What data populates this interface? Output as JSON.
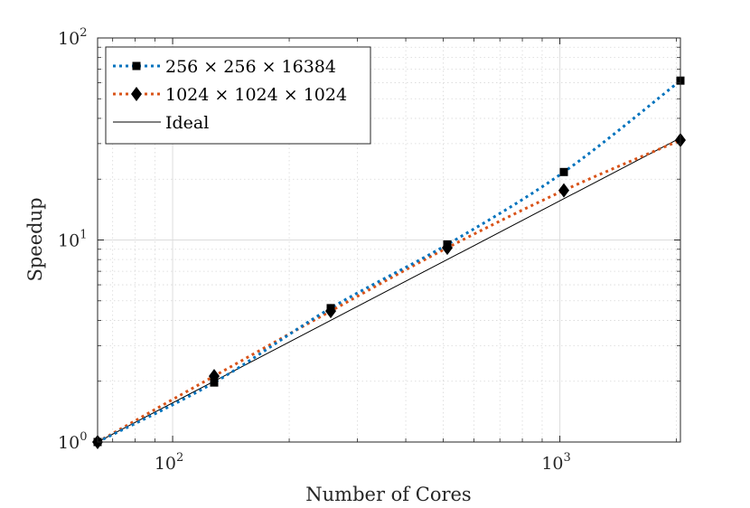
{
  "chart_data": {
    "type": "line",
    "xscale": "log",
    "yscale": "log",
    "xlim": [
      64,
      2048
    ],
    "ylim": [
      1,
      100
    ],
    "xlabel": "Number of Cores",
    "ylabel": "Speedup",
    "grid": true,
    "minor_grid": true,
    "legend_position": "top-left",
    "x_ticks": [
      {
        "value": 100,
        "base": "10",
        "exp": "2"
      },
      {
        "value": 1000,
        "base": "10",
        "exp": "3"
      }
    ],
    "y_ticks": [
      {
        "value": 1,
        "base": "10",
        "exp": "0"
      },
      {
        "value": 10,
        "base": "10",
        "exp": "1"
      },
      {
        "value": 100,
        "base": "10",
        "exp": "2"
      }
    ],
    "series": [
      {
        "name": "256 × 256 × 16384",
        "color": "#0072BD",
        "line_style": "dotted",
        "marker": "square",
        "x": [
          64,
          128,
          256,
          512,
          1024,
          2048
        ],
        "y": [
          1.0,
          1.97,
          4.6,
          9.5,
          21.7,
          61.5
        ]
      },
      {
        "name": "1024 × 1024 × 1024",
        "color": "#D95319",
        "line_style": "dotted",
        "marker": "diamond",
        "x": [
          64,
          128,
          256,
          512,
          1024,
          2048
        ],
        "y": [
          1.0,
          2.12,
          4.45,
          9.15,
          17.6,
          31.2
        ]
      },
      {
        "name": "Ideal",
        "color": "#000000",
        "line_style": "solid",
        "marker": "none",
        "x": [
          64,
          2048
        ],
        "y": [
          1,
          32
        ]
      }
    ]
  }
}
